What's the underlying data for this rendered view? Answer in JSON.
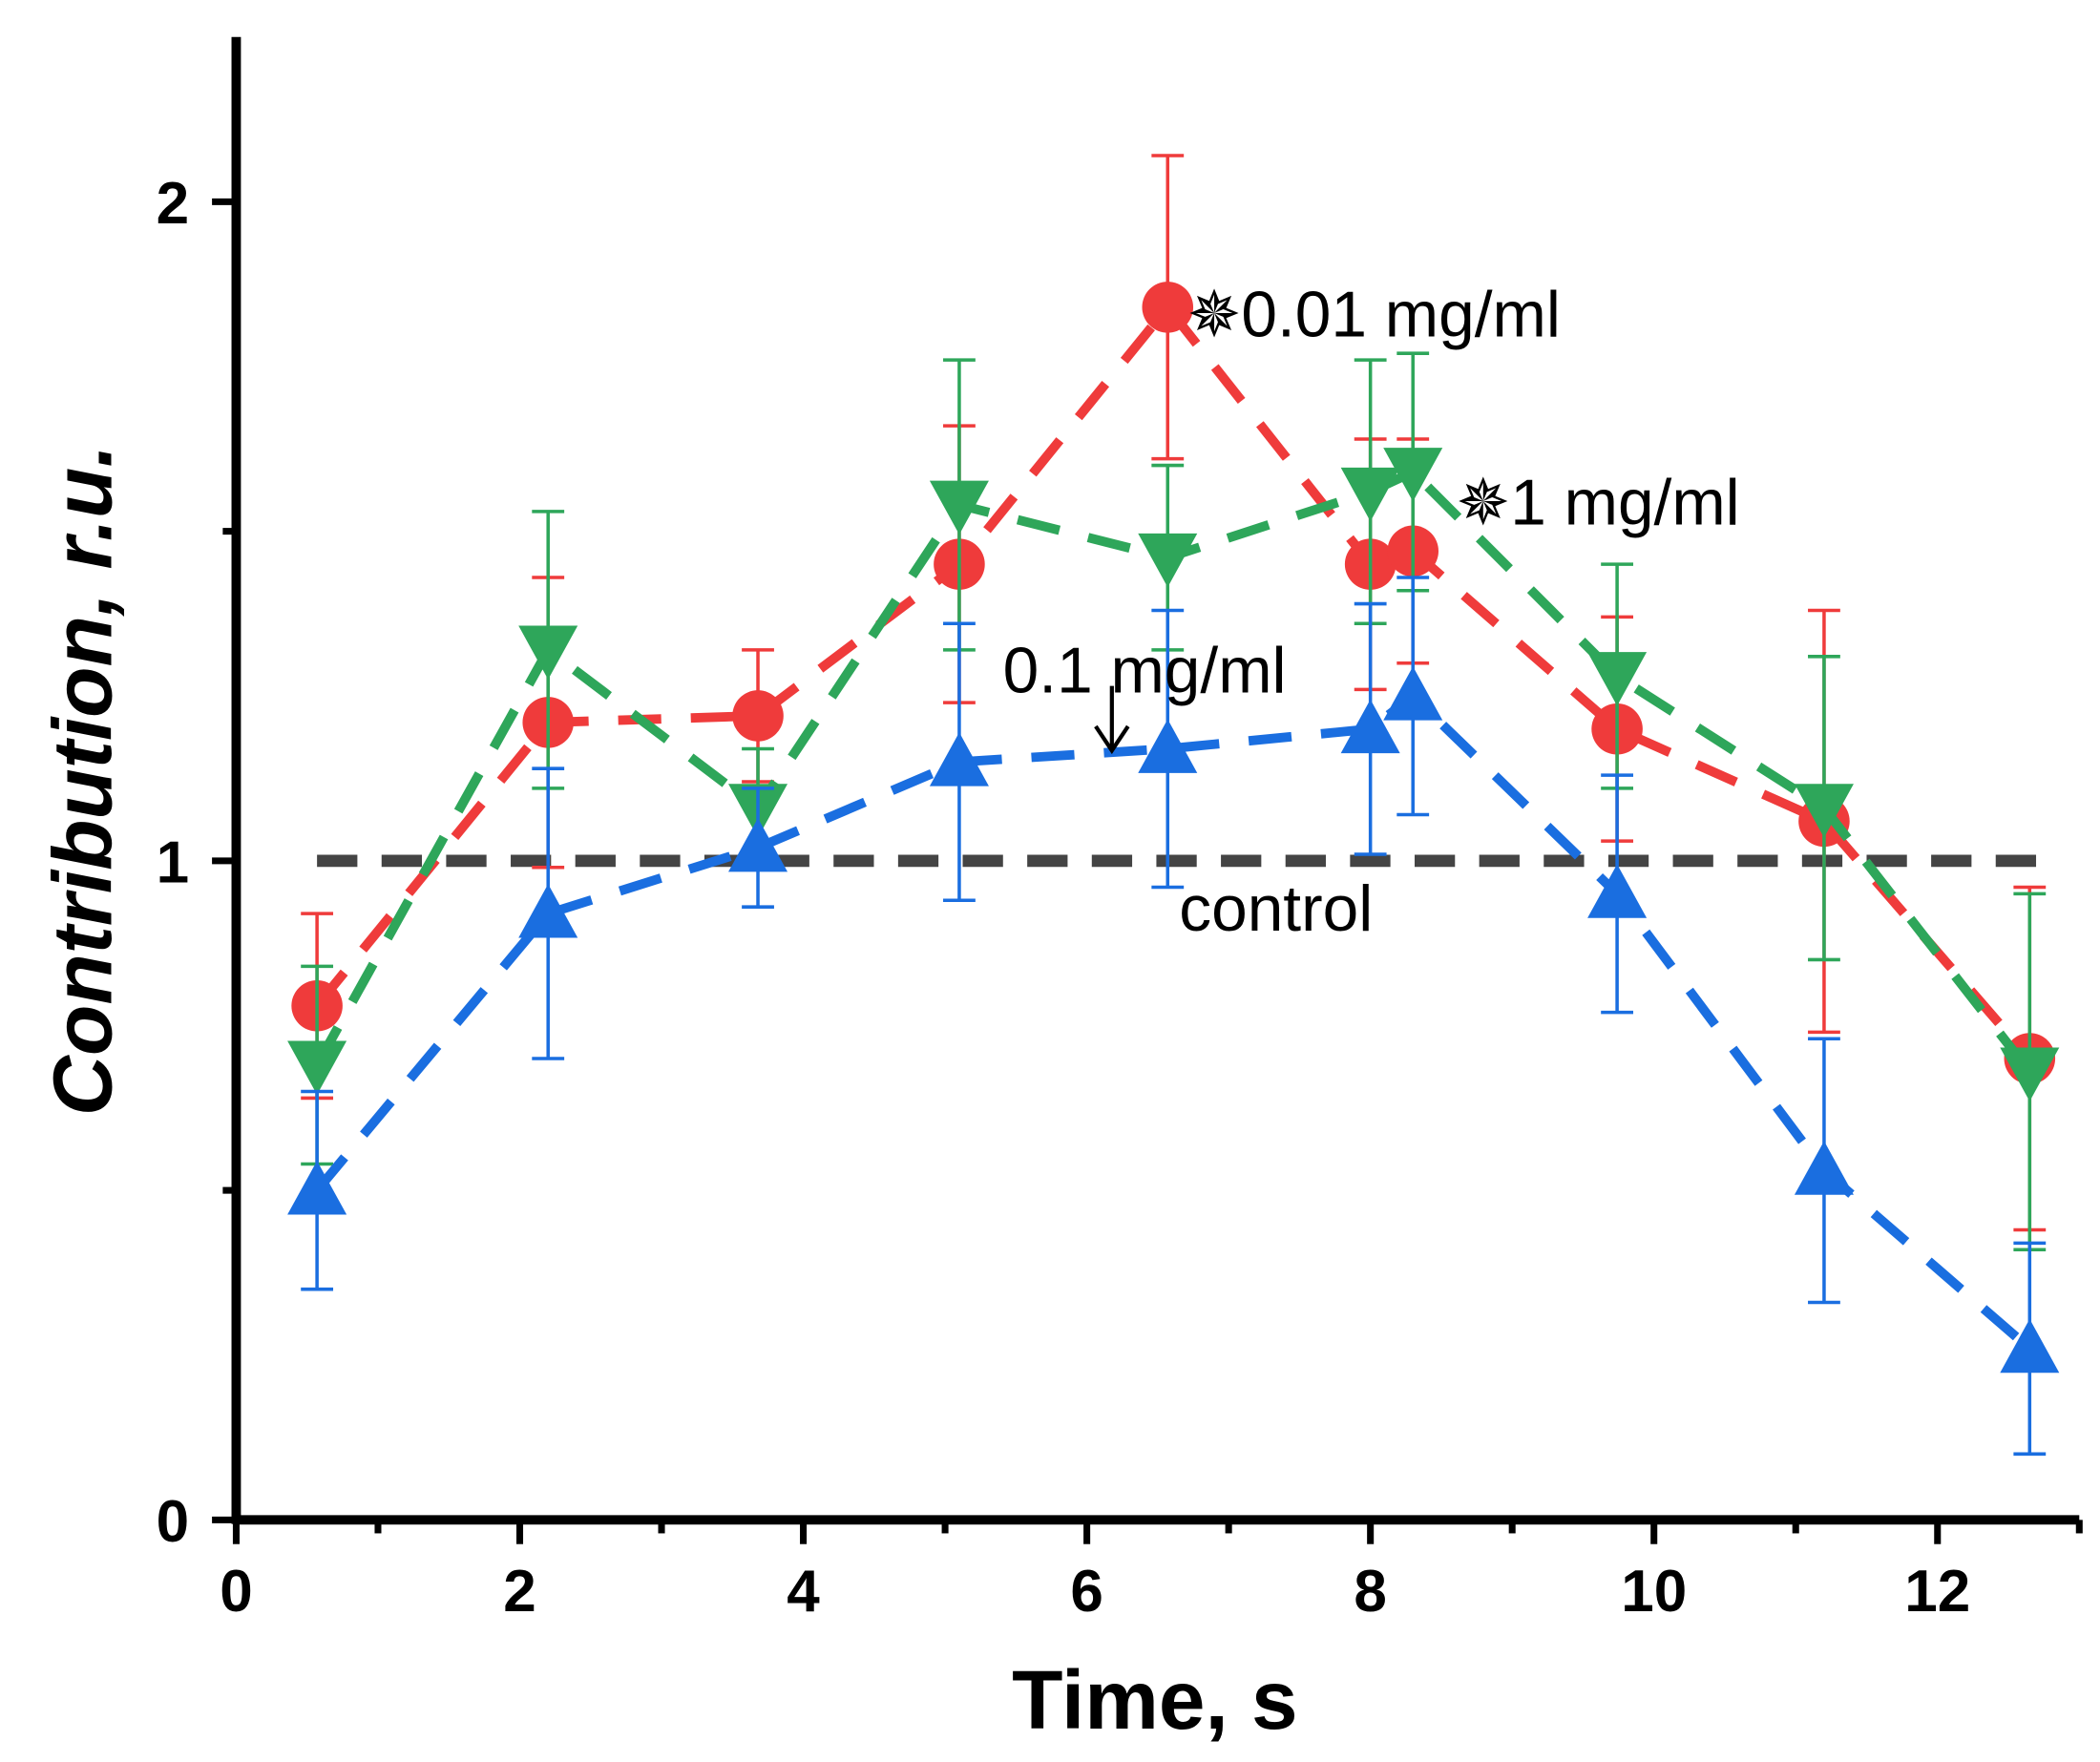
{
  "chart_data": {
    "type": "line",
    "title": "",
    "xlabel": "Time, s",
    "ylabel": "Contribution, r.u.",
    "xlim": [
      0,
      13
    ],
    "ylim": [
      0,
      2.25
    ],
    "xticks": [
      "0",
      "2",
      "4",
      "6",
      "8",
      "10",
      "12"
    ],
    "yticks": [
      "0",
      "1",
      "2"
    ],
    "grid": false,
    "x": [
      0.57,
      2.2,
      3.68,
      5.1,
      6.57,
      8.0,
      8.3,
      9.74,
      11.2,
      12.65
    ],
    "series": [
      {
        "name": "0.01 mg/ml",
        "color": "#ef3b3b",
        "marker": "circle",
        "values": [
          0.78,
          1.21,
          1.22,
          1.45,
          1.84,
          1.45,
          1.47,
          1.2,
          1.06,
          0.7
        ],
        "errors": [
          0.14,
          0.22,
          0.1,
          0.21,
          0.23,
          0.19,
          0.17,
          0.17,
          0.32,
          0.26
        ]
      },
      {
        "name": "1 mg/ml",
        "color": "#2ea65a",
        "marker": "triangle-down",
        "values": [
          0.69,
          1.32,
          1.08,
          1.54,
          1.46,
          1.56,
          1.59,
          1.28,
          1.08,
          0.68
        ],
        "errors": [
          0.15,
          0.21,
          0.09,
          0.22,
          0.14,
          0.2,
          0.18,
          0.17,
          0.23,
          0.27
        ]
      },
      {
        "name": "0.1 mg/ml",
        "color": "#1a6ee0",
        "marker": "triangle-up",
        "values": [
          0.5,
          0.92,
          1.02,
          1.15,
          1.17,
          1.2,
          1.25,
          0.95,
          0.53,
          0.26
        ],
        "errors": [
          0.15,
          0.22,
          0.09,
          0.21,
          0.21,
          0.19,
          0.18,
          0.18,
          0.2,
          0.16
        ]
      }
    ],
    "control": {
      "name": "control",
      "value": 1,
      "color": "#444444"
    },
    "annotations": {
      "a001": "✵0.01 mg/ml",
      "a1": "✵1 mg/ml",
      "a01": "0.1 mg/ml",
      "control": "control"
    }
  }
}
